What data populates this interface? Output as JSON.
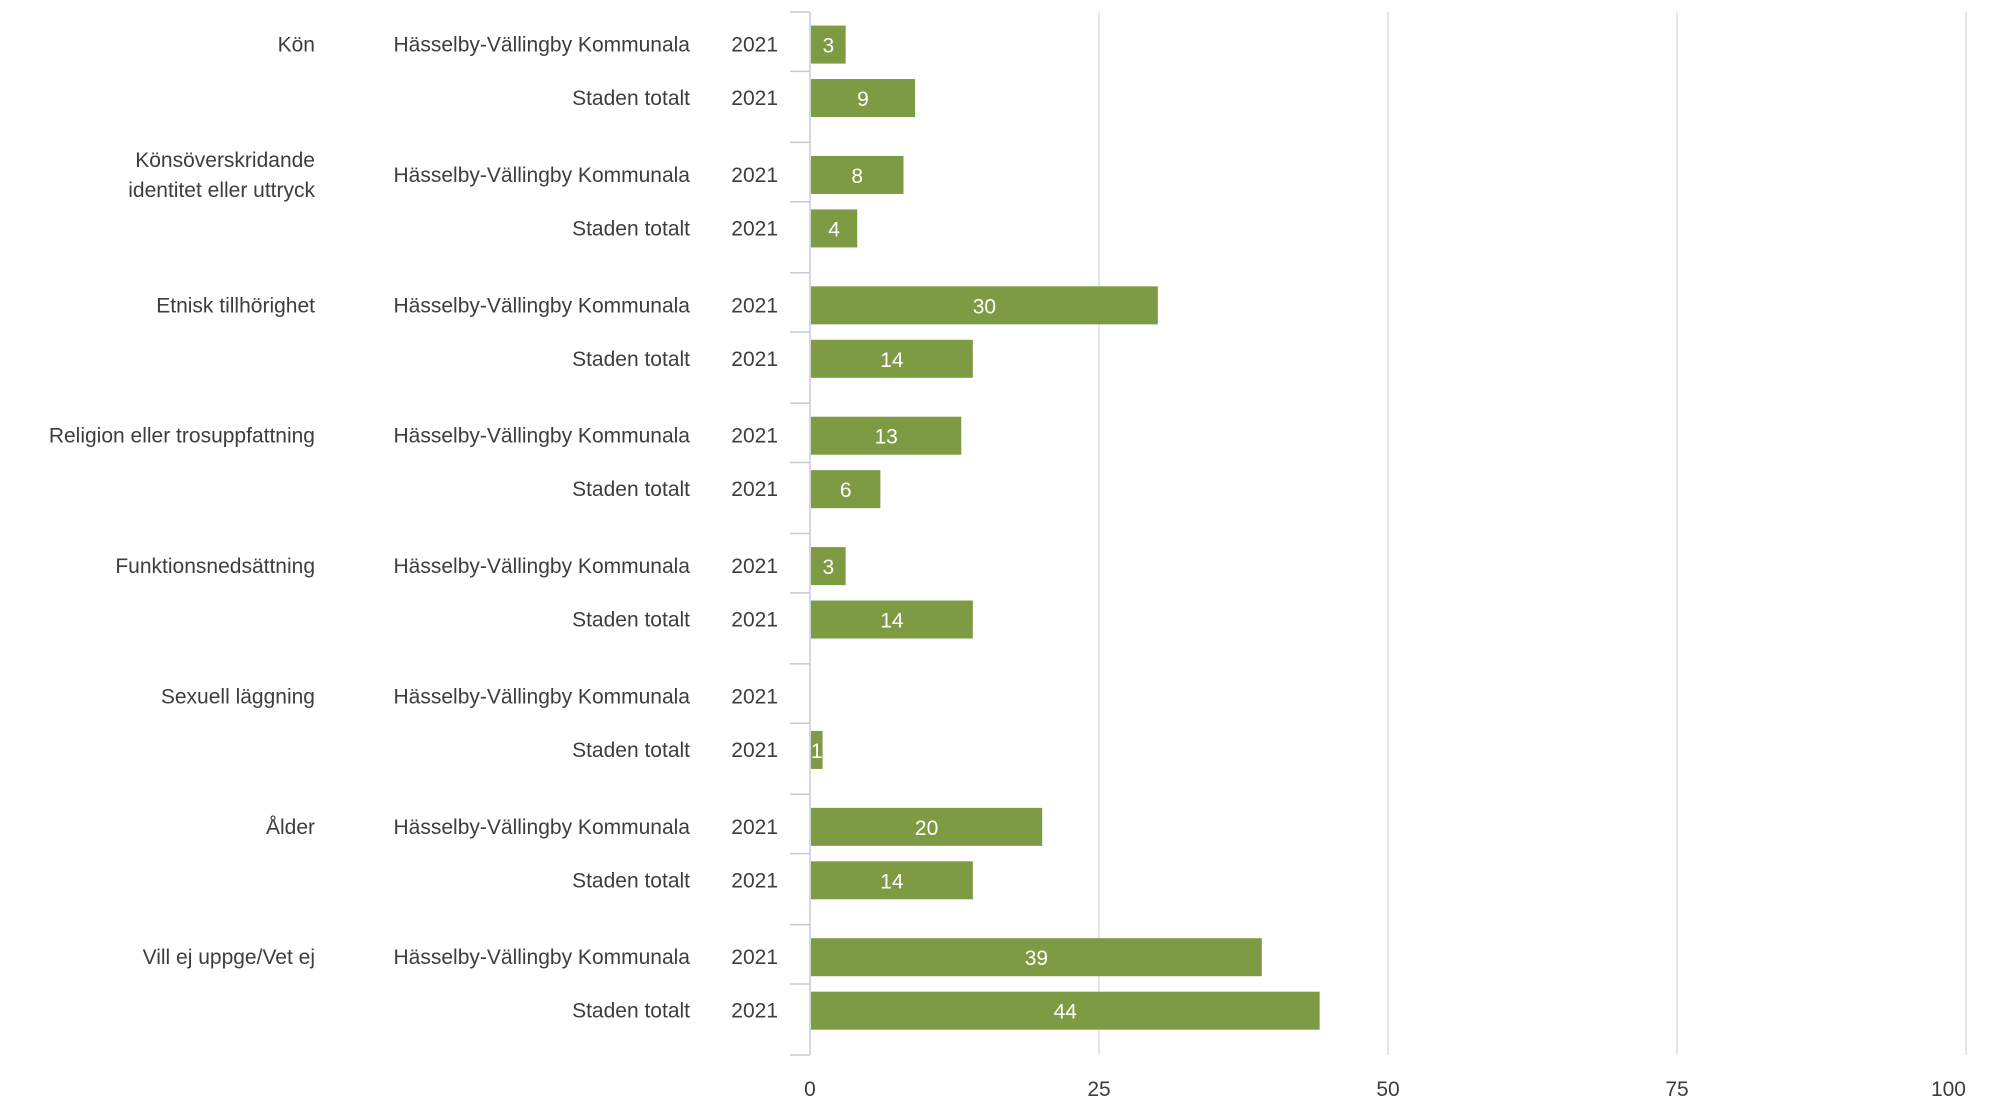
{
  "chart_data": {
    "type": "bar",
    "orientation": "horizontal",
    "categories": [
      {
        "label": "Kön",
        "rows": [
          {
            "group": "Hässelby-Vällingby Kommunala",
            "year": "2021",
            "value": 3
          },
          {
            "group": "Staden totalt",
            "year": "2021",
            "value": 9
          }
        ]
      },
      {
        "label": "Könsöverskridande identitet eller uttryck",
        "label_lines": [
          "Könsöverskridande",
          "identitet eller uttryck"
        ],
        "rows": [
          {
            "group": "Hässelby-Vällingby Kommunala",
            "year": "2021",
            "value": 8
          },
          {
            "group": "Staden totalt",
            "year": "2021",
            "value": 4
          }
        ]
      },
      {
        "label": "Etnisk tillhörighet",
        "rows": [
          {
            "group": "Hässelby-Vällingby Kommunala",
            "year": "2021",
            "value": 30
          },
          {
            "group": "Staden totalt",
            "year": "2021",
            "value": 14
          }
        ]
      },
      {
        "label": "Religion eller trosuppfattning",
        "rows": [
          {
            "group": "Hässelby-Vällingby Kommunala",
            "year": "2021",
            "value": 13
          },
          {
            "group": "Staden totalt",
            "year": "2021",
            "value": 6
          }
        ]
      },
      {
        "label": "Funktionsnedsättning",
        "rows": [
          {
            "group": "Hässelby-Vällingby Kommunala",
            "year": "2021",
            "value": 3
          },
          {
            "group": "Staden totalt",
            "year": "2021",
            "value": 14
          }
        ]
      },
      {
        "label": "Sexuell läggning",
        "rows": [
          {
            "group": "Hässelby-Vällingby Kommunala",
            "year": "2021",
            "value": null
          },
          {
            "group": "Staden totalt",
            "year": "2021",
            "value": 1
          }
        ]
      },
      {
        "label": "Ålder",
        "rows": [
          {
            "group": "Hässelby-Vällingby Kommunala",
            "year": "2021",
            "value": 20
          },
          {
            "group": "Staden totalt",
            "year": "2021",
            "value": 14
          }
        ]
      },
      {
        "label": "Vill ej uppge/Vet ej",
        "rows": [
          {
            "group": "Hässelby-Vällingby Kommunala",
            "year": "2021",
            "value": 39
          },
          {
            "group": "Staden totalt",
            "year": "2021",
            "value": 44
          }
        ]
      }
    ],
    "xlim": [
      0,
      100
    ],
    "xticks": [
      0,
      25,
      50,
      75,
      100
    ],
    "title": "",
    "xlabel": "",
    "ylabel": "",
    "grid": "vertical",
    "legend": "none",
    "colors": {
      "bar": "#7d9b43",
      "grid": "#dcdde3",
      "axis": "#c8cad6",
      "text": "#3d3d3d",
      "data_label": "#ffffff"
    }
  }
}
